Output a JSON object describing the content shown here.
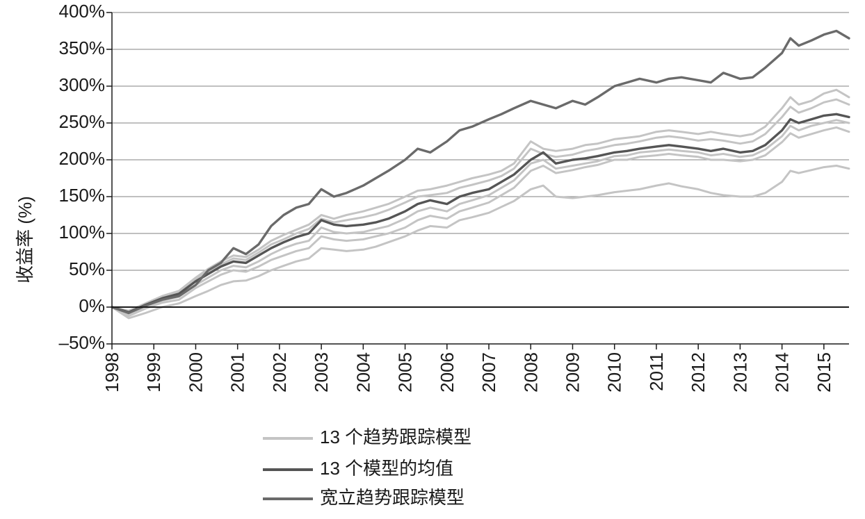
{
  "chart_data": {
    "type": "line",
    "xlabel": "",
    "ylabel": "收益率 (%)",
    "ylim": [
      -50,
      400
    ],
    "xlim": [
      1998.0,
      2015.6
    ],
    "y_ticks": [
      -50,
      0,
      50,
      100,
      150,
      200,
      250,
      300,
      350,
      400
    ],
    "y_tick_labels": [
      "–50%",
      "0%",
      "50%",
      "100%",
      "150%",
      "200%",
      "250%",
      "300%",
      "350%",
      "400%"
    ],
    "x_ticks": [
      1998,
      1999,
      2000,
      2001,
      2002,
      2003,
      2004,
      2005,
      2006,
      2007,
      2008,
      2009,
      2010,
      2011,
      2012,
      2013,
      2014,
      2015
    ],
    "x_tick_labels": [
      "1998",
      "1999",
      "2000",
      "2001",
      "2002",
      "2003",
      "2004",
      "2005",
      "2006",
      "2007",
      "2008",
      "2009",
      "2010",
      "2011",
      "2012",
      "2013",
      "2014",
      "2015"
    ],
    "grid": true,
    "legend_position": "bottom-center",
    "colors": {
      "thirteen_models": "#c4c4c4",
      "model_average": "#555555",
      "winton": "#6a6a6a",
      "zero_line": "#1a1a1a",
      "grid": "#9a9a9a",
      "axis": "#1a1a1a"
    },
    "series": [
      {
        "name": "宽立趋势跟踪模型",
        "role": "winton",
        "x": [
          1998.0,
          1998.4,
          1998.8,
          1999.2,
          1999.6,
          2000.0,
          2000.3,
          2000.6,
          2000.9,
          2001.2,
          2001.5,
          2001.8,
          2002.1,
          2002.4,
          2002.7,
          2003.0,
          2003.3,
          2003.6,
          2004.0,
          2004.3,
          2004.6,
          2005.0,
          2005.3,
          2005.6,
          2006.0,
          2006.3,
          2006.6,
          2007.0,
          2007.3,
          2007.6,
          2008.0,
          2008.3,
          2008.6,
          2009.0,
          2009.3,
          2009.6,
          2010.0,
          2010.3,
          2010.6,
          2011.0,
          2011.3,
          2011.6,
          2012.0,
          2012.3,
          2012.6,
          2013.0,
          2013.3,
          2013.6,
          2014.0,
          2014.2,
          2014.4,
          2014.7,
          2015.0,
          2015.3,
          2015.6
        ],
        "values": [
          0,
          -8,
          2,
          10,
          15,
          30,
          50,
          60,
          80,
          72,
          85,
          110,
          125,
          135,
          140,
          160,
          150,
          155,
          165,
          175,
          185,
          200,
          215,
          210,
          225,
          240,
          245,
          255,
          262,
          270,
          280,
          275,
          270,
          280,
          275,
          285,
          300,
          305,
          310,
          305,
          310,
          312,
          308,
          305,
          318,
          310,
          312,
          325,
          345,
          365,
          355,
          362,
          370,
          375,
          365
        ]
      },
      {
        "name": "13 个模型的均值",
        "role": "average",
        "x": [
          1998.0,
          1998.4,
          1998.8,
          1999.2,
          1999.6,
          2000.0,
          2000.3,
          2000.6,
          2000.9,
          2001.2,
          2001.5,
          2001.8,
          2002.1,
          2002.4,
          2002.7,
          2003.0,
          2003.3,
          2003.6,
          2004.0,
          2004.3,
          2004.6,
          2005.0,
          2005.3,
          2005.6,
          2006.0,
          2006.3,
          2006.6,
          2007.0,
          2007.3,
          2007.6,
          2008.0,
          2008.3,
          2008.6,
          2009.0,
          2009.3,
          2009.6,
          2010.0,
          2010.3,
          2010.6,
          2011.0,
          2011.3,
          2011.6,
          2012.0,
          2012.3,
          2012.6,
          2013.0,
          2013.3,
          2013.6,
          2014.0,
          2014.2,
          2014.4,
          2014.7,
          2015.0,
          2015.3,
          2015.6
        ],
        "values": [
          0,
          -7,
          3,
          12,
          18,
          35,
          45,
          55,
          62,
          60,
          70,
          80,
          88,
          95,
          100,
          118,
          112,
          110,
          112,
          115,
          120,
          130,
          140,
          145,
          140,
          150,
          155,
          160,
          170,
          180,
          200,
          210,
          195,
          200,
          202,
          205,
          210,
          212,
          215,
          218,
          220,
          218,
          215,
          212,
          215,
          210,
          212,
          220,
          240,
          255,
          250,
          255,
          260,
          262,
          258
        ]
      },
      {
        "name": "13 个趋势跟踪模型",
        "role": "model-high",
        "x": [
          1998.0,
          1998.4,
          1998.8,
          1999.2,
          1999.6,
          2000.0,
          2000.3,
          2000.6,
          2000.9,
          2001.2,
          2001.5,
          2001.8,
          2002.1,
          2002.4,
          2002.7,
          2003.0,
          2003.3,
          2003.6,
          2004.0,
          2004.3,
          2004.6,
          2005.0,
          2005.3,
          2005.6,
          2006.0,
          2006.3,
          2006.6,
          2007.0,
          2007.3,
          2007.6,
          2008.0,
          2008.3,
          2008.6,
          2009.0,
          2009.3,
          2009.6,
          2010.0,
          2010.3,
          2010.6,
          2011.0,
          2011.3,
          2011.6,
          2012.0,
          2012.3,
          2012.6,
          2013.0,
          2013.3,
          2013.6,
          2014.0,
          2014.2,
          2014.4,
          2014.7,
          2015.0,
          2015.3,
          2015.6
        ],
        "values": [
          0,
          -5,
          5,
          15,
          22,
          40,
          52,
          62,
          70,
          68,
          78,
          90,
          98,
          105,
          112,
          125,
          120,
          125,
          130,
          135,
          140,
          150,
          158,
          160,
          165,
          170,
          175,
          180,
          185,
          195,
          225,
          215,
          212,
          215,
          220,
          222,
          228,
          230,
          232,
          238,
          240,
          238,
          235,
          238,
          235,
          232,
          235,
          245,
          270,
          285,
          275,
          280,
          290,
          295,
          285
        ]
      },
      {
        "name": "13 个趋势跟踪模型",
        "role": "model-upper",
        "x": [
          1998.0,
          1998.4,
          1998.8,
          1999.2,
          1999.6,
          2000.0,
          2000.3,
          2000.6,
          2000.9,
          2001.2,
          2001.5,
          2001.8,
          2002.1,
          2002.4,
          2002.7,
          2003.0,
          2003.3,
          2003.6,
          2004.0,
          2004.3,
          2004.6,
          2005.0,
          2005.3,
          2005.6,
          2006.0,
          2006.3,
          2006.6,
          2007.0,
          2007.3,
          2007.6,
          2008.0,
          2008.3,
          2008.6,
          2009.0,
          2009.3,
          2009.6,
          2010.0,
          2010.3,
          2010.6,
          2011.0,
          2011.3,
          2011.6,
          2012.0,
          2012.3,
          2012.6,
          2013.0,
          2013.3,
          2013.6,
          2014.0,
          2014.2,
          2014.4,
          2014.7,
          2015.0,
          2015.3,
          2015.6
        ],
        "values": [
          0,
          -6,
          4,
          13,
          20,
          38,
          48,
          58,
          66,
          64,
          74,
          85,
          92,
          100,
          106,
          120,
          115,
          118,
          122,
          126,
          132,
          142,
          150,
          152,
          155,
          162,
          166,
          172,
          178,
          188,
          215,
          208,
          204,
          207,
          212,
          215,
          220,
          222,
          225,
          230,
          232,
          230,
          226,
          228,
          226,
          222,
          225,
          235,
          258,
          272,
          264,
          270,
          278,
          282,
          275
        ]
      },
      {
        "name": "13 个趋势跟踪模型",
        "role": "model-mid",
        "x": [
          1998.0,
          1998.4,
          1998.8,
          1999.2,
          1999.6,
          2000.0,
          2000.3,
          2000.6,
          2000.9,
          2001.2,
          2001.5,
          2001.8,
          2002.1,
          2002.4,
          2002.7,
          2003.0,
          2003.3,
          2003.6,
          2004.0,
          2004.3,
          2004.6,
          2005.0,
          2005.3,
          2005.6,
          2006.0,
          2006.3,
          2006.6,
          2007.0,
          2007.3,
          2007.6,
          2008.0,
          2008.3,
          2008.6,
          2009.0,
          2009.3,
          2009.6,
          2010.0,
          2010.3,
          2010.6,
          2011.0,
          2011.3,
          2011.6,
          2012.0,
          2012.3,
          2012.6,
          2013.0,
          2013.3,
          2013.6,
          2014.0,
          2014.2,
          2014.4,
          2014.7,
          2015.0,
          2015.3,
          2015.6
        ],
        "values": [
          0,
          -9,
          0,
          9,
          14,
          30,
          40,
          50,
          56,
          54,
          62,
          72,
          80,
          86,
          90,
          108,
          102,
          100,
          102,
          106,
          110,
          120,
          130,
          135,
          130,
          140,
          145,
          152,
          162,
          172,
          195,
          200,
          188,
          192,
          195,
          198,
          205,
          206,
          210,
          212,
          214,
          212,
          210,
          206,
          208,
          204,
          206,
          214,
          232,
          246,
          240,
          246,
          250,
          254,
          250
        ]
      },
      {
        "name": "13 个趋势跟踪模型",
        "role": "model-lower",
        "x": [
          1998.0,
          1998.4,
          1998.8,
          1999.2,
          1999.6,
          2000.0,
          2000.3,
          2000.6,
          2000.9,
          2001.2,
          2001.5,
          2001.8,
          2002.1,
          2002.4,
          2002.7,
          2003.0,
          2003.3,
          2003.6,
          2004.0,
          2004.3,
          2004.6,
          2005.0,
          2005.3,
          2005.6,
          2006.0,
          2006.3,
          2006.6,
          2007.0,
          2007.3,
          2007.6,
          2008.0,
          2008.3,
          2008.6,
          2009.0,
          2009.3,
          2009.6,
          2010.0,
          2010.3,
          2010.6,
          2011.0,
          2011.3,
          2011.6,
          2012.0,
          2012.3,
          2012.6,
          2013.0,
          2013.3,
          2013.6,
          2014.0,
          2014.2,
          2014.4,
          2014.7,
          2015.0,
          2015.3,
          2015.6
        ],
        "values": [
          0,
          -12,
          -2,
          6,
          10,
          26,
          35,
          44,
          50,
          48,
          55,
          64,
          70,
          76,
          80,
          96,
          92,
          90,
          92,
          96,
          100,
          108,
          118,
          124,
          120,
          130,
          135,
          142,
          152,
          162,
          185,
          192,
          182,
          186,
          190,
          193,
          200,
          200,
          204,
          206,
          208,
          206,
          204,
          200,
          200,
          198,
          200,
          206,
          224,
          236,
          230,
          235,
          240,
          244,
          238
        ]
      },
      {
        "name": "13 个趋势跟踪模型",
        "role": "model-low",
        "x": [
          1998.0,
          1998.4,
          1998.8,
          1999.2,
          1999.6,
          2000.0,
          2000.3,
          2000.6,
          2000.9,
          2001.2,
          2001.5,
          2001.8,
          2002.1,
          2002.4,
          2002.7,
          2003.0,
          2003.3,
          2003.6,
          2004.0,
          2004.3,
          2004.6,
          2005.0,
          2005.3,
          2005.6,
          2006.0,
          2006.3,
          2006.6,
          2007.0,
          2007.3,
          2007.6,
          2008.0,
          2008.3,
          2008.6,
          2009.0,
          2009.3,
          2009.6,
          2010.0,
          2010.3,
          2010.6,
          2011.0,
          2011.3,
          2011.6,
          2012.0,
          2012.3,
          2012.6,
          2013.0,
          2013.3,
          2013.6,
          2014.0,
          2014.2,
          2014.4,
          2014.7,
          2015.0,
          2015.3,
          2015.6
        ],
        "values": [
          0,
          -15,
          -8,
          0,
          5,
          15,
          22,
          30,
          35,
          36,
          42,
          50,
          56,
          62,
          66,
          80,
          78,
          76,
          78,
          82,
          88,
          96,
          104,
          110,
          108,
          118,
          122,
          128,
          136,
          144,
          160,
          165,
          150,
          148,
          150,
          152,
          156,
          158,
          160,
          165,
          168,
          164,
          160,
          155,
          152,
          150,
          150,
          155,
          170,
          185,
          182,
          186,
          190,
          192,
          188
        ]
      }
    ]
  },
  "legend": {
    "items": [
      {
        "label": "13 个趋势跟踪模型",
        "color": "#c4c4c4"
      },
      {
        "label": "13 个模型的均值",
        "color": "#555555"
      },
      {
        "label": "宽立趋势跟踪模型",
        "color": "#6a6a6a"
      }
    ]
  }
}
